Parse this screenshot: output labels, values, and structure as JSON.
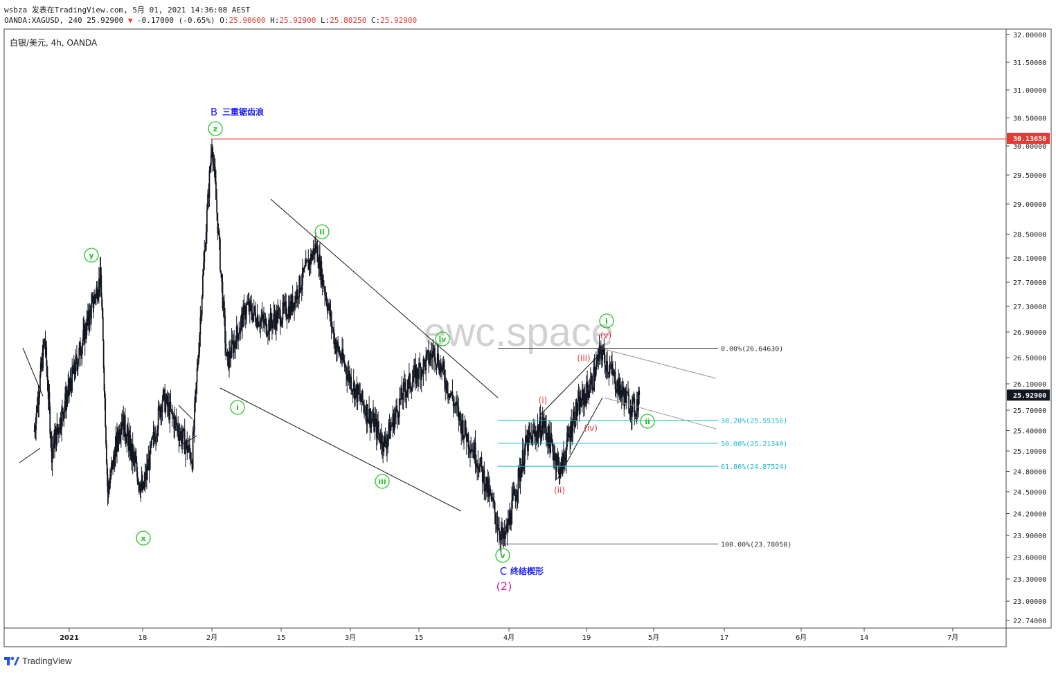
{
  "header": {
    "line1": "wsbza 发表在TradingView.com, 5月 01, 2021 14:36:08 AEST",
    "symbol_info": "OANDA:XAGUSD, 240 25.92900",
    "change": "-0.17000 (-0.65%)",
    "o_label": "O:",
    "o_value": "25.90600",
    "h_label": "H:",
    "h_value": "25.92900",
    "l_label": "L:",
    "l_value": "25.80250",
    "c_label": "C:",
    "c_value": "25.92900"
  },
  "brand": {
    "name": "TradingView"
  },
  "colors": {
    "candle": "#131722",
    "green_wave": "#22c322",
    "red_wave": "#e53935",
    "blue_label": "#1a1aff",
    "magenta": "#e0199c",
    "fib": "#17b8c9",
    "hline": "#e53935",
    "price_tag": "#131722"
  },
  "chart_data": {
    "type": "candlestick",
    "title": "白银/美元, 4h, OANDA",
    "watermark": "ewc.space",
    "ylim": [
      22.6,
      32.1
    ],
    "y_ticks": [
      "32.00000",
      "31.50000",
      "31.00000",
      "30.50000",
      "30.00000",
      "29.50000",
      "29.00000",
      "28.50000",
      "28.10000",
      "27.70000",
      "27.30000",
      "26.90000",
      "26.50000",
      "26.10000",
      "25.70000",
      "25.40000",
      "25.10000",
      "24.80000",
      "24.50000",
      "24.20000",
      "23.90000",
      "23.60000",
      "23.30000",
      "23.00000",
      "22.74000"
    ],
    "x_ticks": [
      "2021",
      "18",
      "2月",
      "15",
      "3月",
      "15",
      "4月",
      "19",
      "5月",
      "17",
      "6月",
      "14",
      "7月"
    ],
    "last_price": "25.92900",
    "horizontal_line": {
      "price": 30.1365,
      "label": "30.13650"
    },
    "fibonacci": [
      {
        "ratio": "0.00%",
        "price": 26.6463,
        "label": "0.00%(26.64630)",
        "color": "gray"
      },
      {
        "ratio": "38.20%",
        "price": 25.55156,
        "label": "38.20%(25.55156)",
        "color": "teal"
      },
      {
        "ratio": "50.00%",
        "price": 25.2134,
        "label": "50.00%(25.21340)",
        "color": "teal"
      },
      {
        "ratio": "61.80%",
        "price": 24.87524,
        "label": "61.80%(24.87524)",
        "color": "teal"
      },
      {
        "ratio": "100.00%",
        "price": 23.7805,
        "label": "100.00%(23.78050)",
        "color": "gray"
      }
    ],
    "wave_labels_green": [
      "y",
      "x",
      "z",
      "i",
      "ii",
      "iii",
      "iv",
      "v",
      "i",
      "ii"
    ],
    "wave_labels_red": [
      "(i)",
      "(ii)",
      "(iii)",
      "(iv)",
      "(v)"
    ],
    "annotations": {
      "b_letter": "B",
      "b_text": "三重锯齿浪",
      "c_letter": "C",
      "c_text": "终结楔形",
      "degree": "(2)"
    },
    "path_points": [
      {
        "date": "2020-12-18",
        "price": 25.4
      },
      {
        "date": "2020-12-21",
        "price": 26.8
      },
      {
        "date": "2020-12-23",
        "price": 25.1
      },
      {
        "date": "2020-12-30",
        "price": 26.4
      },
      {
        "date": "2021-01-06",
        "price": 27.8
      },
      {
        "date": "2021-01-08",
        "price": 24.5
      },
      {
        "date": "2021-01-12",
        "price": 25.6
      },
      {
        "date": "2021-01-18",
        "price": 24.5
      },
      {
        "date": "2021-01-22",
        "price": 25.9
      },
      {
        "date": "2021-01-28",
        "price": 25.0
      },
      {
        "date": "2021-02-01",
        "price": 30.1
      },
      {
        "date": "2021-02-04",
        "price": 26.4
      },
      {
        "date": "2021-02-08",
        "price": 27.3
      },
      {
        "date": "2021-02-12",
        "price": 27.0
      },
      {
        "date": "2021-02-17",
        "price": 27.3
      },
      {
        "date": "2021-02-22",
        "price": 28.3
      },
      {
        "date": "2021-02-26",
        "price": 26.7
      },
      {
        "date": "2021-03-02",
        "price": 26.0
      },
      {
        "date": "2021-03-08",
        "price": 25.2
      },
      {
        "date": "2021-03-12",
        "price": 26.0
      },
      {
        "date": "2021-03-18",
        "price": 26.6
      },
      {
        "date": "2021-03-23",
        "price": 25.5
      },
      {
        "date": "2021-03-26",
        "price": 25.0
      },
      {
        "date": "2021-03-31",
        "price": 23.8
      },
      {
        "date": "2021-04-05",
        "price": 25.2
      },
      {
        "date": "2021-04-09",
        "price": 25.5
      },
      {
        "date": "2021-04-13",
        "price": 24.8
      },
      {
        "date": "2021-04-16",
        "price": 25.6
      },
      {
        "date": "2021-04-20",
        "price": 26.1
      },
      {
        "date": "2021-04-22",
        "price": 26.6
      },
      {
        "date": "2021-04-26",
        "price": 26.0
      },
      {
        "date": "2021-04-29",
        "price": 25.7
      },
      {
        "date": "2021-04-30",
        "price": 25.929
      }
    ]
  }
}
